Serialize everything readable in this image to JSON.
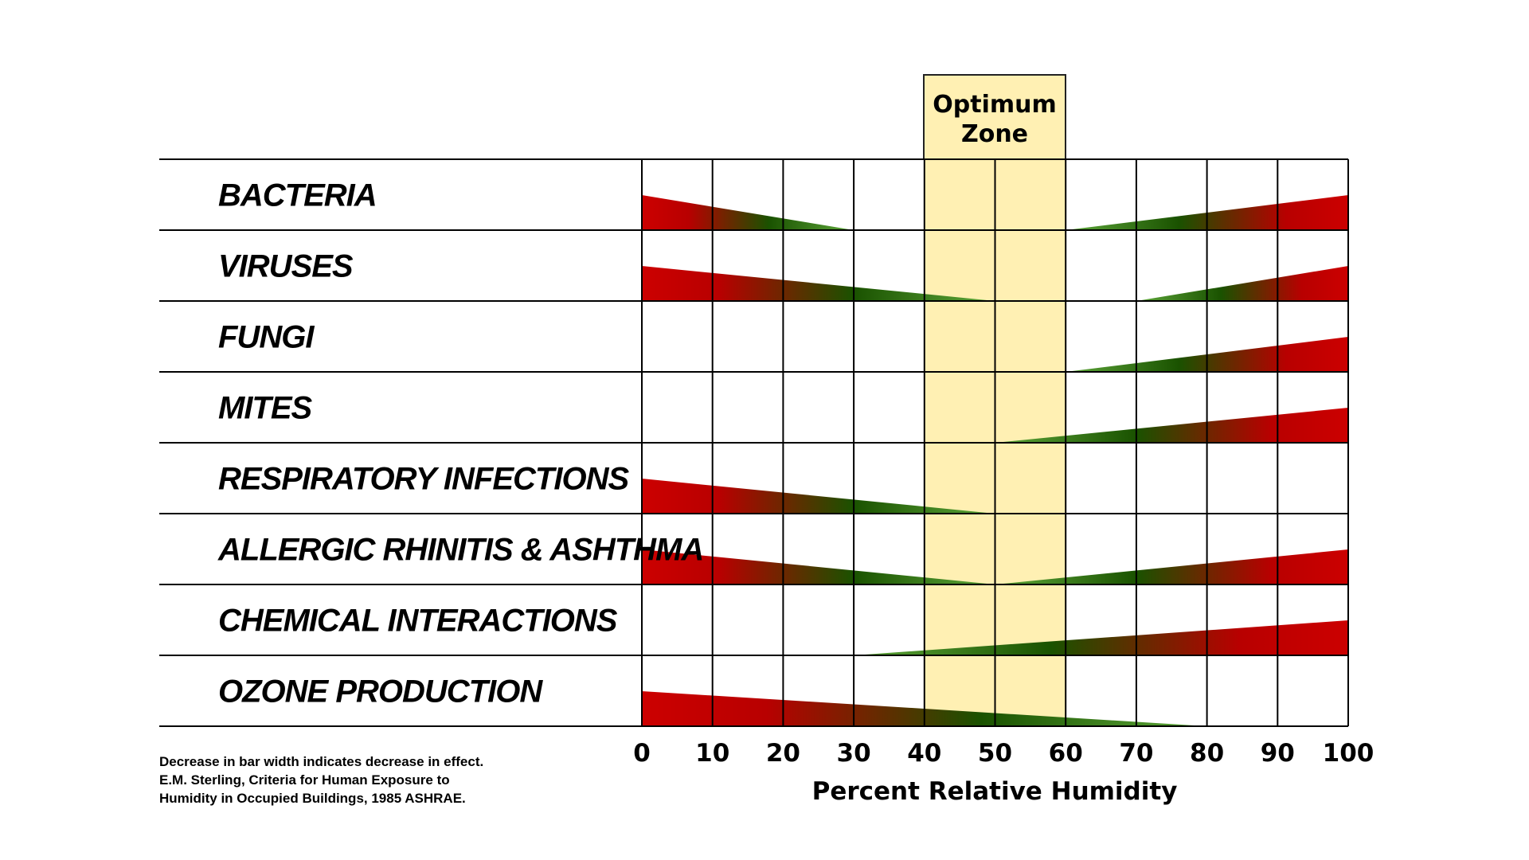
{
  "chart_data": {
    "type": "bar",
    "subtype": "tapered-range-bars",
    "xlabel": "Percent Relative Humidity",
    "xlim": [
      0,
      100
    ],
    "x_ticks": [
      "0",
      "10",
      "20",
      "30",
      "40",
      "50",
      "60",
      "70",
      "80",
      "90",
      "100"
    ],
    "optimum_zone": {
      "title_lines": [
        "Optimum",
        "Zone"
      ],
      "range": [
        40,
        60
      ]
    },
    "colors": {
      "high_effect": "#cc0000",
      "mid_effect": "#1a5200",
      "low_effect": "#5ea83a",
      "zone_fill": "#fff0b3",
      "zone_border": "#222222",
      "grid": "#000000"
    },
    "categories": [
      "BACTERIA",
      "VIRUSES",
      "FUNGI",
      "MITES",
      "RESPIRATORY INFECTIONS",
      "ALLERGIC RHINITIS & ASHTHMA",
      "CHEMICAL INTERACTIONS",
      "OZONE PRODUCTION"
    ],
    "series": [
      {
        "name": "BACTERIA",
        "segments": [
          {
            "from": 0,
            "to": 30,
            "max_at": 0
          },
          {
            "from": 60,
            "to": 100,
            "max_at": 100
          }
        ]
      },
      {
        "name": "VIRUSES",
        "segments": [
          {
            "from": 0,
            "to": 50,
            "max_at": 0
          },
          {
            "from": 70,
            "to": 100,
            "max_at": 100
          }
        ]
      },
      {
        "name": "FUNGI",
        "segments": [
          {
            "from": 60,
            "to": 100,
            "max_at": 100
          }
        ]
      },
      {
        "name": "MITES",
        "segments": [
          {
            "from": 50,
            "to": 100,
            "max_at": 100
          }
        ]
      },
      {
        "name": "RESPIRATORY INFECTIONS",
        "segments": [
          {
            "from": 0,
            "to": 50,
            "max_at": 0
          }
        ]
      },
      {
        "name": "ALLERGIC RHINITIS & ASHTHMA",
        "segments": [
          {
            "from": 0,
            "to": 50,
            "max_at": 0
          },
          {
            "from": 50,
            "to": 100,
            "max_at": 100
          }
        ]
      },
      {
        "name": "CHEMICAL INTERACTIONS",
        "segments": [
          {
            "from": 30,
            "to": 100,
            "max_at": 100
          }
        ]
      },
      {
        "name": "OZONE PRODUCTION",
        "segments": [
          {
            "from": 0,
            "to": 80,
            "max_at": 0
          }
        ]
      }
    ],
    "notes": [
      "Decrease in bar width indicates decrease in effect.",
      "E.M. Sterling, Criteria for Human Exposure to",
      "Humidity in Occupied Buildings, 1985 ASHRAE."
    ]
  }
}
